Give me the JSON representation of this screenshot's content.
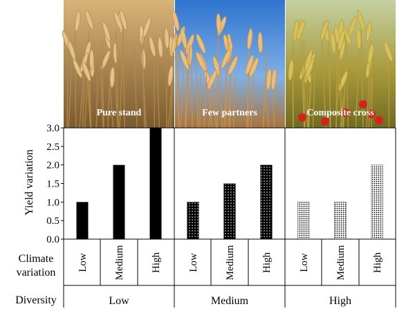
{
  "photos": [
    {
      "label": "Pure stand",
      "sky": "#c9a46a",
      "plant": "#b58a4a",
      "accent": "#e0c48a"
    },
    {
      "label": "Few partners",
      "sky": "#3f83d4",
      "plant": "#c9924e",
      "accent": "#e8bf7e"
    },
    {
      "label": "Composite cross",
      "sky": "#b8c98e",
      "plant": "#b69d3f",
      "accent": "#d6c25a"
    }
  ],
  "left_labels": {
    "climate_line1": "Climate",
    "climate_line2": "variation",
    "diversity": "Diversity"
  },
  "chart_data": {
    "type": "bar",
    "ylabel": "Yield variation",
    "ylim": [
      0.0,
      3.0
    ],
    "yticks": [
      "0.0",
      "0.5",
      "1.0",
      "1.5",
      "2.0",
      "2.5",
      "3.0"
    ],
    "categories": [
      "Low",
      "Medium",
      "High"
    ],
    "groups": [
      {
        "diversity": "Low",
        "pattern": "solid",
        "values": [
          1.0,
          2.0,
          3.0
        ]
      },
      {
        "diversity": "Medium",
        "pattern": "sparse-dots",
        "values": [
          1.0,
          1.5,
          2.0
        ]
      },
      {
        "diversity": "High",
        "pattern": "dense-dots",
        "values": [
          1.0,
          1.0,
          2.0
        ]
      }
    ]
  }
}
